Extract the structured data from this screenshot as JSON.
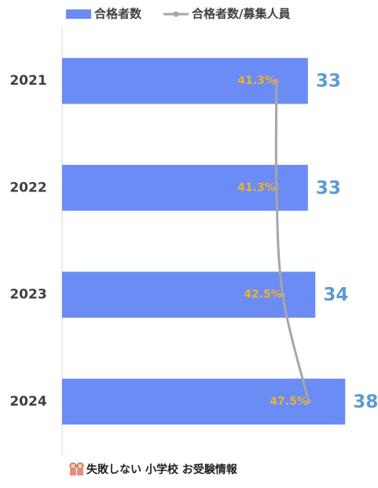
{
  "chart_data": {
    "type": "bar",
    "orientation": "horizontal",
    "categories": [
      "2021",
      "2022",
      "2023",
      "2024"
    ],
    "series": [
      {
        "name": "合格者数",
        "type": "bar",
        "color": "#6a8cf4",
        "values": [
          33,
          33,
          34,
          38
        ]
      },
      {
        "name": "合格者数/募集人員",
        "type": "line",
        "axis": "x2",
        "color": "#a6a6a6",
        "values": [
          41.3,
          41.3,
          42.5,
          47.5
        ],
        "value_labels": [
          "41.3%",
          "41.3%",
          "42.5%",
          "47.5%"
        ]
      }
    ],
    "xlim": [
      0,
      42.3
    ],
    "x2lim": [
      0,
      60.7
    ],
    "legend": "top"
  },
  "footer": "失敗しない 小学校 お受験情報"
}
